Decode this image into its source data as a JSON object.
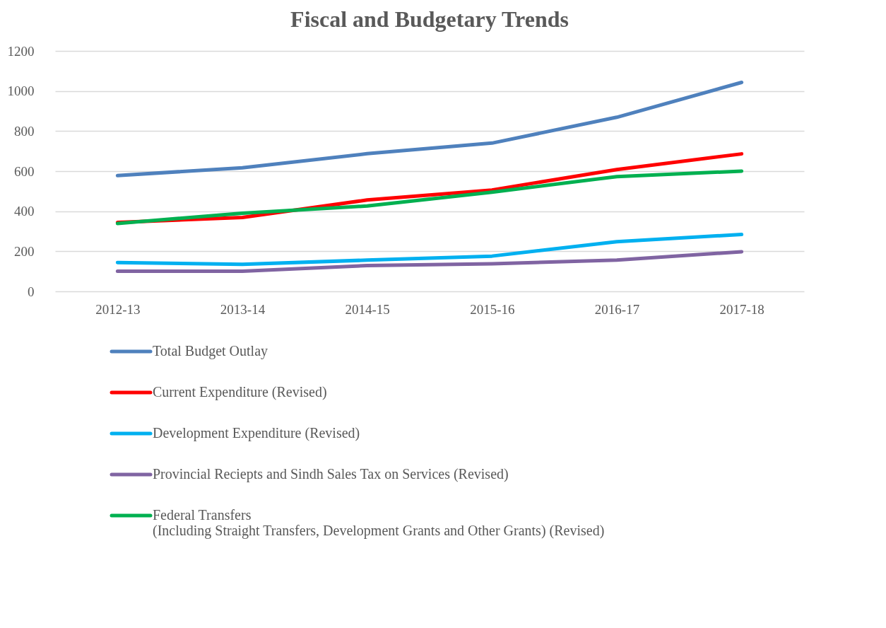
{
  "chart_data": {
    "type": "line",
    "title": "Fiscal and Budgetary Trends",
    "categories": [
      "2012-13",
      "2013-14",
      "2014-15",
      "2015-16",
      "2016-17",
      "2017-18"
    ],
    "series": [
      {
        "name": "Total Budget Outlay",
        "color": "#4f81bd",
        "values": [
          578,
          617,
          687,
          740,
          869,
          1043
        ]
      },
      {
        "name": "Current Expenditure (Revised)",
        "color": "#ff0000",
        "values": [
          344,
          369,
          456,
          506,
          608,
          686
        ]
      },
      {
        "name": "Development Expenditure (Revised)",
        "color": "#00b0f0",
        "values": [
          144,
          135,
          156,
          176,
          248,
          284
        ]
      },
      {
        "name": "Provincial Reciepts and Sindh Sales Tax on Services (Revised)",
        "color": "#8064a2",
        "values": [
          101,
          101,
          129,
          138,
          156,
          198
        ]
      },
      {
        "name": "Federal Transfers\n(Including Straight Transfers, Development Grants and Other Grants) (Revised)",
        "color": "#00b050",
        "values": [
          339,
          390,
          426,
          495,
          573,
          600
        ]
      }
    ],
    "ylim": [
      0,
      1200
    ],
    "yticks": [
      0,
      200,
      400,
      600,
      800,
      1000,
      1200
    ],
    "grid": "y",
    "legend": "bottom",
    "marker": "none",
    "line_style": "solid"
  }
}
